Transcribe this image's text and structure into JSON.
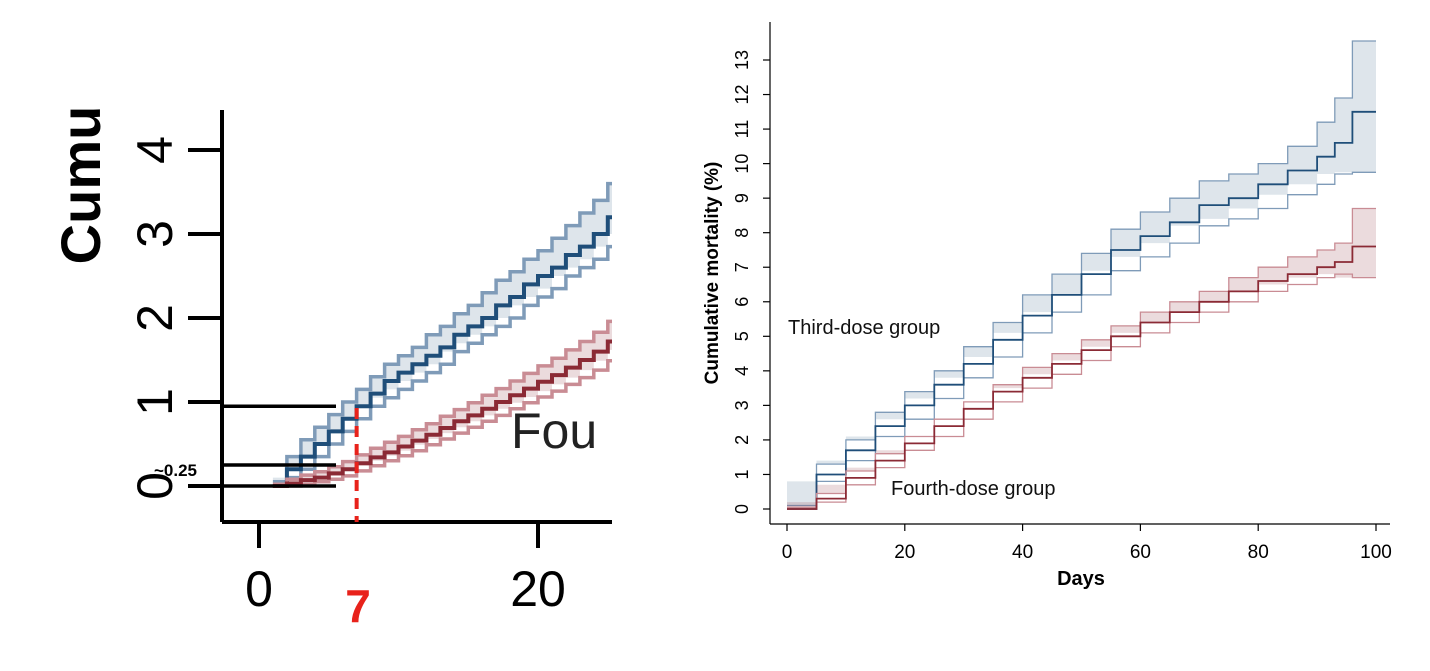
{
  "chart_data": [
    {
      "type": "line",
      "panel": "zoomed-inset",
      "ylabel": "Cumu",
      "annotation_text": "Fou",
      "x_ticks": [
        "0",
        "20"
      ],
      "y_ticks": [
        "0",
        "1",
        "2",
        "3",
        "4"
      ],
      "xlim": [
        -2.5,
        26.5
      ],
      "ylim": [
        -0.45,
        4.45
      ],
      "highlight_x_label": "7",
      "highlight_x": 7,
      "highlight_y_label": "~0.25",
      "reference_levels_y": [
        0.0,
        0.25,
        0.95
      ],
      "colors": {
        "third": "#1f4e79",
        "fourth": "#8b2a35",
        "highlight": "#e8221b"
      },
      "series": [
        {
          "key": "third",
          "x": [
            1,
            2,
            3,
            4,
            5,
            6,
            7,
            8,
            9,
            10,
            11,
            12,
            13,
            14,
            15,
            16,
            17,
            18,
            19,
            20,
            21,
            22,
            23,
            24,
            25,
            26.5
          ],
          "values": [
            0.0,
            0.2,
            0.35,
            0.5,
            0.65,
            0.8,
            0.95,
            1.1,
            1.25,
            1.35,
            1.45,
            1.55,
            1.65,
            1.8,
            1.9,
            2.0,
            2.15,
            2.25,
            2.4,
            2.5,
            2.6,
            2.75,
            2.85,
            3.0,
            3.2,
            3.4
          ],
          "lower": [
            0.0,
            0.1,
            0.2,
            0.35,
            0.5,
            0.65,
            0.8,
            0.95,
            1.05,
            1.15,
            1.25,
            1.35,
            1.45,
            1.6,
            1.7,
            1.8,
            1.9,
            2.0,
            2.15,
            2.25,
            2.35,
            2.5,
            2.6,
            2.7,
            2.85,
            3.0
          ],
          "upper": [
            0.05,
            0.35,
            0.55,
            0.7,
            0.85,
            1.0,
            1.15,
            1.3,
            1.45,
            1.55,
            1.65,
            1.8,
            1.9,
            2.05,
            2.15,
            2.3,
            2.45,
            2.55,
            2.7,
            2.8,
            2.95,
            3.1,
            3.25,
            3.4,
            3.6,
            3.85
          ]
        },
        {
          "key": "fourth",
          "x": [
            1,
            2,
            3,
            4,
            5,
            6,
            7,
            8,
            9,
            10,
            11,
            12,
            13,
            14,
            15,
            16,
            17,
            18,
            19,
            20,
            21,
            22,
            23,
            24,
            25,
            26.5
          ],
          "values": [
            0.0,
            0.03,
            0.07,
            0.1,
            0.15,
            0.2,
            0.27,
            0.34,
            0.4,
            0.47,
            0.54,
            0.61,
            0.69,
            0.77,
            0.84,
            0.92,
            1.0,
            1.08,
            1.16,
            1.24,
            1.32,
            1.41,
            1.5,
            1.6,
            1.72,
            1.88
          ],
          "lower": [
            0.0,
            0.0,
            0.02,
            0.05,
            0.08,
            0.12,
            0.18,
            0.24,
            0.3,
            0.36,
            0.42,
            0.49,
            0.56,
            0.63,
            0.7,
            0.77,
            0.84,
            0.92,
            0.99,
            1.06,
            1.13,
            1.21,
            1.29,
            1.38,
            1.49,
            1.62
          ],
          "upper": [
            0.02,
            0.08,
            0.13,
            0.17,
            0.23,
            0.29,
            0.37,
            0.45,
            0.52,
            0.59,
            0.67,
            0.74,
            0.83,
            0.91,
            0.99,
            1.08,
            1.16,
            1.25,
            1.34,
            1.43,
            1.52,
            1.62,
            1.72,
            1.83,
            1.96,
            2.13
          ]
        }
      ]
    },
    {
      "type": "line",
      "panel": "full",
      "xlabel": "Days",
      "ylabel": "Cumulative mortality (%)",
      "xlim": [
        0,
        100
      ],
      "ylim": [
        0,
        13.5
      ],
      "x_ticks": [
        "0",
        "20",
        "40",
        "60",
        "80",
        "100"
      ],
      "y_ticks": [
        "0",
        "1",
        "2",
        "3",
        "4",
        "5",
        "6",
        "7",
        "8",
        "9",
        "10",
        "11",
        "12",
        "13"
      ],
      "colors": {
        "third": "#1f4e79",
        "fourth": "#8b2a35"
      },
      "series": [
        {
          "key": "third",
          "name": "Third-dose group",
          "x": [
            0,
            5,
            10,
            15,
            20,
            25,
            30,
            35,
            40,
            45,
            50,
            55,
            60,
            65,
            70,
            75,
            80,
            85,
            90,
            93,
            96,
            100
          ],
          "values": [
            0,
            1.0,
            1.7,
            2.4,
            3.0,
            3.6,
            4.2,
            4.9,
            5.6,
            6.2,
            6.8,
            7.5,
            7.9,
            8.3,
            8.8,
            9.0,
            9.4,
            9.8,
            10.2,
            10.6,
            11.5,
            11.5
          ],
          "lower": [
            0,
            0.8,
            1.4,
            2.1,
            2.6,
            3.2,
            3.8,
            4.4,
            5.1,
            5.7,
            6.2,
            6.9,
            7.3,
            7.7,
            8.2,
            8.4,
            8.7,
            9.1,
            9.4,
            9.7,
            9.75,
            9.75
          ],
          "upper": [
            0.1,
            1.3,
            2.0,
            2.8,
            3.4,
            4.0,
            4.7,
            5.4,
            6.2,
            6.8,
            7.4,
            8.1,
            8.6,
            9.0,
            9.5,
            9.7,
            10.0,
            10.5,
            11.2,
            11.9,
            13.55,
            13.55
          ]
        },
        {
          "key": "fourth",
          "name": "Fourth-dose group",
          "x": [
            0,
            5,
            10,
            15,
            20,
            25,
            30,
            35,
            40,
            45,
            50,
            55,
            60,
            65,
            70,
            75,
            80,
            85,
            90,
            93,
            96,
            100
          ],
          "values": [
            0,
            0.3,
            0.9,
            1.4,
            1.9,
            2.4,
            2.9,
            3.4,
            3.8,
            4.2,
            4.6,
            5.0,
            5.4,
            5.7,
            6.0,
            6.3,
            6.6,
            6.8,
            7.0,
            7.15,
            7.6,
            7.6
          ],
          "lower": [
            0,
            0.2,
            0.7,
            1.2,
            1.7,
            2.1,
            2.6,
            3.1,
            3.5,
            3.9,
            4.3,
            4.7,
            5.1,
            5.4,
            5.7,
            6.0,
            6.3,
            6.5,
            6.7,
            6.8,
            6.7,
            6.7
          ],
          "upper": [
            0.05,
            0.45,
            1.1,
            1.6,
            2.1,
            2.6,
            3.1,
            3.6,
            4.1,
            4.5,
            4.9,
            5.3,
            5.7,
            6.0,
            6.3,
            6.7,
            7.0,
            7.3,
            7.5,
            7.7,
            8.7,
            8.7
          ]
        }
      ]
    }
  ]
}
